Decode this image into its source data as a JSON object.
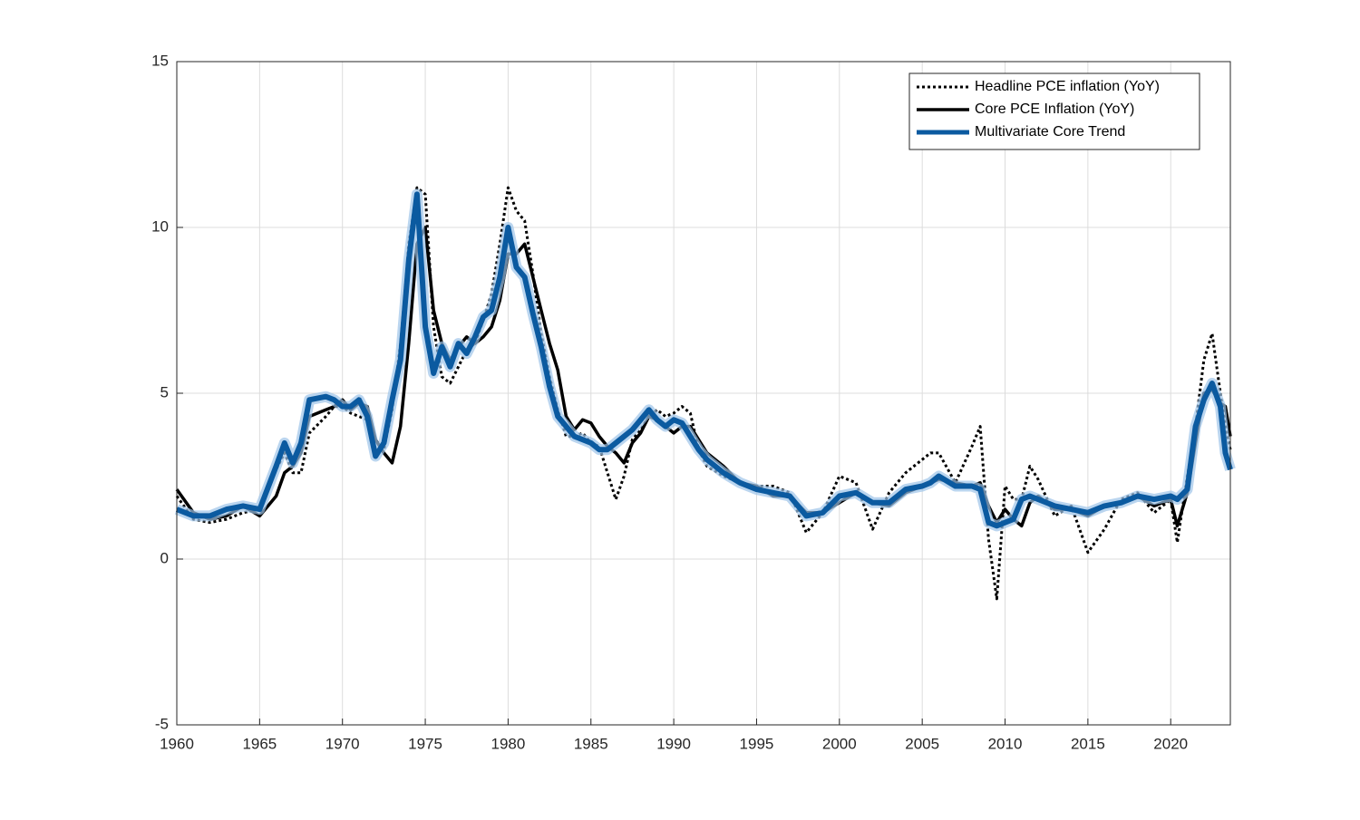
{
  "chart_data": {
    "type": "line",
    "x": [
      1960,
      1961,
      1962,
      1963,
      1964,
      1965,
      1966,
      1966.5,
      1967,
      1967.5,
      1968,
      1969,
      1969.5,
      1970,
      1970.5,
      1971,
      1971.5,
      1972,
      1972.5,
      1973,
      1973.5,
      1974,
      1974.5,
      1975,
      1975.5,
      1976,
      1976.5,
      1977,
      1977.5,
      1978,
      1978.5,
      1979,
      1979.5,
      1980,
      1980.5,
      1981,
      1981.5,
      1982,
      1982.5,
      1983,
      1983.5,
      1984,
      1984.5,
      1985,
      1985.5,
      1986,
      1986.5,
      1987,
      1987.5,
      1988,
      1988.5,
      1989,
      1989.5,
      1990,
      1990.5,
      1991,
      1991.5,
      1992,
      1993,
      1994,
      1995,
      1996,
      1997,
      1998,
      1999,
      2000,
      2001,
      2002,
      2003,
      2004,
      2005,
      2005.5,
      2006,
      2007,
      2008,
      2008.5,
      2009,
      2009.5,
      2010,
      2010.5,
      2011,
      2011.5,
      2012,
      2013,
      2014,
      2015,
      2016,
      2017,
      2018,
      2019,
      2020,
      2020.4,
      2021,
      2021.5,
      2022,
      2022.5,
      2023,
      2023.3,
      2023.6
    ],
    "series": [
      {
        "name": "Headline PCE inflation (YoY)",
        "color": "#000000",
        "line_style": "dotted",
        "line_width": 3,
        "values": [
          1.9,
          1.2,
          1.1,
          1.2,
          1.4,
          1.5,
          2.7,
          3.2,
          2.6,
          2.6,
          3.8,
          4.3,
          4.6,
          4.6,
          4.4,
          4.3,
          4.2,
          3.3,
          3.3,
          4.5,
          6.5,
          9.5,
          11.2,
          11.0,
          7.0,
          5.5,
          5.3,
          5.8,
          6.3,
          6.5,
          7.2,
          8.0,
          9.5,
          11.2,
          10.5,
          10.2,
          8.6,
          6.8,
          5.5,
          4.5,
          3.7,
          3.7,
          3.8,
          3.5,
          3.4,
          2.6,
          1.8,
          2.5,
          3.6,
          3.9,
          4.3,
          4.5,
          4.3,
          4.4,
          4.6,
          4.4,
          3.3,
          2.8,
          2.5,
          2.3,
          2.2,
          2.2,
          2.0,
          0.8,
          1.4,
          2.5,
          2.3,
          0.9,
          2.0,
          2.6,
          3.0,
          3.2,
          3.2,
          2.3,
          3.4,
          4.0,
          0.6,
          -1.2,
          2.2,
          1.8,
          1.8,
          2.8,
          2.4,
          1.3,
          1.6,
          0.2,
          0.9,
          1.8,
          2.0,
          1.4,
          1.8,
          0.5,
          2.5,
          4.0,
          6.0,
          6.8,
          5.0,
          4.0,
          3.3
        ]
      },
      {
        "name": "Core PCE Inflation (YoY)",
        "color": "#000000",
        "line_style": "solid",
        "line_width": 3.5,
        "values": [
          2.1,
          1.4,
          1.2,
          1.3,
          1.6,
          1.3,
          1.9,
          2.6,
          2.8,
          3.2,
          4.3,
          4.5,
          4.6,
          4.8,
          4.5,
          4.7,
          4.6,
          3.6,
          3.2,
          2.9,
          4.0,
          6.5,
          9.5,
          10.0,
          7.5,
          6.5,
          6.0,
          6.4,
          6.7,
          6.5,
          6.7,
          7.0,
          7.8,
          9.2,
          9.2,
          9.5,
          8.5,
          7.5,
          6.5,
          5.7,
          4.3,
          3.9,
          4.2,
          4.1,
          3.7,
          3.4,
          3.2,
          2.9,
          3.5,
          3.8,
          4.3,
          4.2,
          4.0,
          3.8,
          4.0,
          4.0,
          3.6,
          3.2,
          2.8,
          2.3,
          2.2,
          1.9,
          1.9,
          1.4,
          1.4,
          1.7,
          2.0,
          1.7,
          1.6,
          2.0,
          2.2,
          2.3,
          2.4,
          2.3,
          2.2,
          2.3,
          1.6,
          1.1,
          1.5,
          1.2,
          1.0,
          1.7,
          1.9,
          1.5,
          1.5,
          1.3,
          1.6,
          1.7,
          1.9,
          1.6,
          1.8,
          1.0,
          2.0,
          3.5,
          5.0,
          5.1,
          4.7,
          4.6,
          3.7
        ]
      },
      {
        "name": "Multivariate Core Trend",
        "color": "#0b5aa0",
        "line_style": "solid",
        "line_width": 6,
        "values": [
          1.5,
          1.3,
          1.3,
          1.5,
          1.6,
          1.5,
          2.8,
          3.5,
          2.9,
          3.5,
          4.8,
          4.9,
          4.8,
          4.6,
          4.6,
          4.8,
          4.3,
          3.1,
          3.5,
          4.8,
          6.0,
          9.0,
          11.0,
          7.0,
          5.6,
          6.4,
          5.8,
          6.5,
          6.2,
          6.7,
          7.3,
          7.5,
          8.5,
          10.0,
          8.8,
          8.5,
          7.4,
          6.4,
          5.2,
          4.3,
          4.0,
          3.7,
          3.6,
          3.5,
          3.3,
          3.3,
          3.5,
          3.7,
          3.9,
          4.2,
          4.5,
          4.2,
          4.0,
          4.2,
          4.1,
          3.7,
          3.3,
          3.0,
          2.6,
          2.3,
          2.1,
          2.0,
          1.9,
          1.3,
          1.4,
          1.9,
          2.0,
          1.7,
          1.7,
          2.1,
          2.2,
          2.3,
          2.5,
          2.2,
          2.2,
          2.1,
          1.1,
          1.0,
          1.1,
          1.2,
          1.8,
          1.9,
          1.8,
          1.6,
          1.5,
          1.4,
          1.6,
          1.7,
          1.9,
          1.8,
          1.9,
          1.8,
          2.1,
          4.0,
          4.8,
          5.3,
          4.6,
          3.2,
          2.7
        ]
      }
    ],
    "xlim": [
      1960,
      2023.6
    ],
    "xticks": [
      1960,
      1965,
      1970,
      1975,
      1980,
      1985,
      1990,
      1995,
      2000,
      2005,
      2010,
      2015,
      2020
    ],
    "ylim": [
      -5,
      15
    ],
    "yticks": [
      -5,
      0,
      5,
      10,
      15
    ],
    "grid": true,
    "legend": "top-right"
  }
}
